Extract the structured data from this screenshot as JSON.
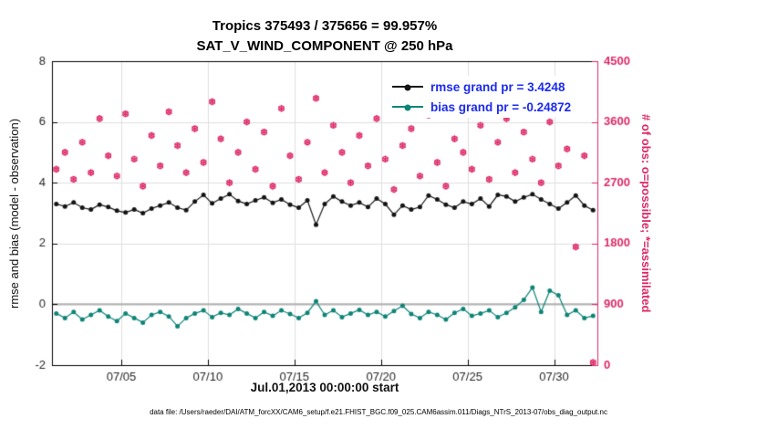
{
  "footer": {
    "data_file": "data file: /Users/raeder/DAI/ATM_forcXX/CAM6_setup/f.e21.FHIST_BGC.f09_025.CAM6assim.011/Diags_NTrS_2013-07/obs_diag_output.nc"
  },
  "chart_data": {
    "type": "line",
    "title": "Tropics 375493 / 375656 = 99.957%",
    "subtitle": "SAT_V_WIND_COMPONENT @ 250 hPa",
    "xlabel": "Jul.01,2013 00:00:00 start",
    "ylabel_left": "rmse and bias (model - observation)",
    "ylabel_right": "# of obs: o=possible; *=assimilated",
    "xlim": [
      0,
      31.5
    ],
    "ylim_left": [
      -2,
      8
    ],
    "ylim_right": [
      0,
      4500
    ],
    "grid": true,
    "zero_line": 0,
    "xticks": {
      "values": [
        4,
        9,
        14,
        19,
        24,
        29
      ],
      "labels": [
        "07/05",
        "07/10",
        "07/15",
        "07/20",
        "07/25",
        "07/30"
      ]
    },
    "yticks_left": [
      -2,
      0,
      2,
      4,
      6,
      8
    ],
    "yticks_right": [
      0,
      900,
      1800,
      2700,
      3600,
      4500
    ],
    "colors": {
      "grid": "#dedede",
      "zero": "#b3b3b3",
      "axis": "#000000",
      "tick_text": "#262626",
      "legend_text": "#1b2bef"
    },
    "legend": {
      "entries": [
        {
          "label": "rmse grand pr = 3.4248",
          "series_index": 0
        },
        {
          "label": "bias grand pr = -0.24872",
          "series_index": 1
        }
      ]
    },
    "x": [
      0.25,
      0.75,
      1.25,
      1.75,
      2.25,
      2.75,
      3.25,
      3.75,
      4.25,
      4.75,
      5.25,
      5.75,
      6.25,
      6.75,
      7.25,
      7.75,
      8.25,
      8.75,
      9.25,
      9.75,
      10.25,
      10.75,
      11.25,
      11.75,
      12.25,
      12.75,
      13.25,
      13.75,
      14.25,
      14.75,
      15.25,
      15.75,
      16.25,
      16.75,
      17.25,
      17.75,
      18.25,
      18.75,
      19.25,
      19.75,
      20.25,
      20.75,
      21.25,
      21.75,
      22.25,
      22.75,
      23.25,
      23.75,
      24.25,
      24.75,
      25.25,
      25.75,
      26.25,
      26.75,
      27.25,
      27.75,
      28.25,
      28.75,
      29.25,
      29.75,
      30.25,
      30.75,
      31.25
    ],
    "series": [
      {
        "name": "rmse",
        "axis": "left",
        "marker": "circle",
        "color": "#141414",
        "values": [
          3.3,
          3.22,
          3.35,
          3.18,
          3.12,
          3.28,
          3.2,
          3.08,
          3.02,
          3.12,
          3.0,
          3.15,
          3.25,
          3.35,
          3.18,
          3.1,
          3.38,
          3.6,
          3.32,
          3.48,
          3.62,
          3.4,
          3.3,
          3.42,
          3.52,
          3.34,
          3.45,
          3.28,
          3.18,
          3.42,
          2.62,
          3.3,
          3.55,
          3.38,
          3.25,
          3.35,
          3.2,
          3.48,
          3.3,
          2.95,
          3.25,
          3.12,
          3.2,
          3.58,
          3.45,
          3.28,
          3.18,
          3.38,
          3.3,
          3.48,
          3.22,
          3.6,
          3.55,
          3.38,
          3.52,
          3.62,
          3.45,
          3.3,
          3.15,
          3.35,
          3.58,
          3.25,
          3.1
        ]
      },
      {
        "name": "bias",
        "axis": "left",
        "marker": "circle",
        "color": "#0e8477",
        "values": [
          -0.3,
          -0.45,
          -0.25,
          -0.5,
          -0.35,
          -0.2,
          -0.4,
          -0.55,
          -0.3,
          -0.45,
          -0.6,
          -0.35,
          -0.25,
          -0.4,
          -0.72,
          -0.45,
          -0.3,
          -0.2,
          -0.42,
          -0.28,
          -0.35,
          -0.15,
          -0.3,
          -0.45,
          -0.25,
          -0.38,
          -0.2,
          -0.32,
          -0.45,
          -0.28,
          0.1,
          -0.35,
          -0.2,
          -0.42,
          -0.3,
          -0.18,
          -0.35,
          -0.25,
          -0.4,
          -0.22,
          -0.05,
          -0.32,
          -0.45,
          -0.25,
          -0.35,
          -0.5,
          -0.28,
          -0.15,
          -0.38,
          -0.3,
          -0.2,
          -0.42,
          -0.28,
          -0.1,
          0.15,
          0.55,
          -0.25,
          0.45,
          0.3,
          -0.35,
          -0.2,
          -0.45,
          -0.38
        ]
      },
      {
        "name": "obs_assimilated",
        "axis": "right",
        "marker": "asterisk",
        "color": "#dd2a66",
        "values": [
          2900,
          3150,
          2750,
          3300,
          2850,
          3650,
          3100,
          2800,
          3720,
          3050,
          2650,
          3400,
          2950,
          3750,
          3250,
          2850,
          3500,
          3000,
          3900,
          3350,
          2700,
          3150,
          3600,
          2900,
          3450,
          2650,
          3800,
          3100,
          2750,
          3300,
          3950,
          2850,
          3550,
          3150,
          2700,
          3400,
          2950,
          3650,
          3050,
          2600,
          3250,
          3500,
          2800,
          3700,
          3000,
          2650,
          3350,
          3150,
          2900,
          3550,
          2750,
          3300,
          3650,
          2850,
          3450,
          3050,
          2700,
          3600,
          2950,
          3200,
          1750,
          3100,
          40
        ]
      }
    ]
  }
}
